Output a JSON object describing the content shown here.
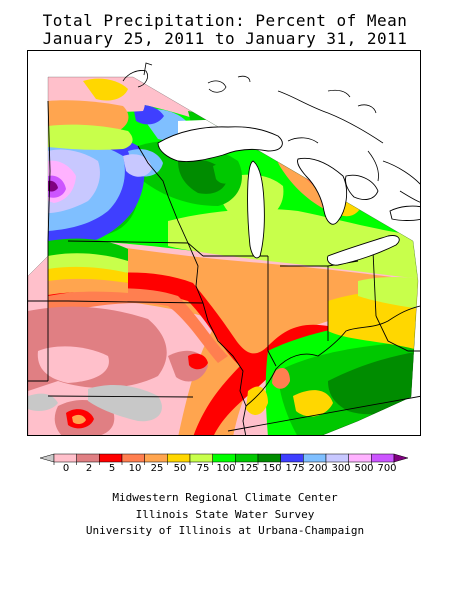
{
  "title": {
    "line1": "Total Precipitation: Percent of Mean",
    "line2": "January 25, 2011 to January 31, 2011"
  },
  "legend": {
    "labels": [
      "0",
      "2",
      "5",
      "10",
      "25",
      "50",
      "75",
      "100",
      "125",
      "150",
      "175",
      "200",
      "300",
      "500",
      "700"
    ],
    "colors": [
      "#c8c8c8",
      "#ffc0cb",
      "#e07f83",
      "#ff0000",
      "#ff7f50",
      "#ffa54f",
      "#ffd700",
      "#c8ff4b",
      "#00ff00",
      "#00c800",
      "#008c00",
      "#3f3fff",
      "#7fbfff",
      "#c8c8ff",
      "#ffb2ff",
      "#cc55ff",
      "#800080"
    ]
  },
  "credits": {
    "line1": "Midwestern Regional Climate Center",
    "line2": "Illinois State Water Survey",
    "line3": "University of Illinois at Urbana-Champaign"
  }
}
